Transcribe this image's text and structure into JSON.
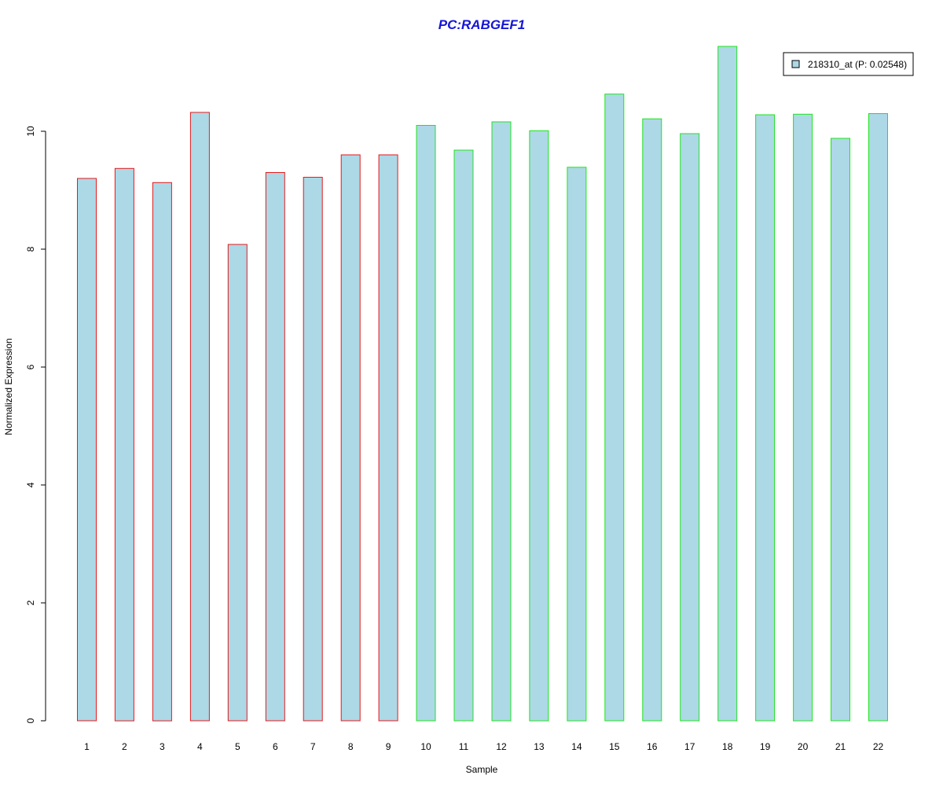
{
  "chart_data": {
    "type": "bar",
    "title": "PC:RABGEF1",
    "xlabel": "Sample",
    "ylabel": "Normalized Expression",
    "categories": [
      "1",
      "2",
      "3",
      "4",
      "5",
      "6",
      "7",
      "8",
      "9",
      "10",
      "11",
      "12",
      "13",
      "14",
      "15",
      "16",
      "17",
      "18",
      "19",
      "20",
      "21",
      "22"
    ],
    "series": [
      {
        "name": "218310_at (P: 0.02548)",
        "values": [
          9.2,
          9.37,
          9.13,
          10.32,
          8.08,
          9.3,
          9.22,
          9.6,
          9.6,
          10.1,
          9.68,
          10.16,
          10.01,
          9.39,
          10.63,
          10.21,
          9.96,
          11.44,
          10.28,
          10.29,
          9.88,
          10.3
        ]
      }
    ],
    "group_border_colors": [
      "#e31a1c",
      "#e31a1c",
      "#e31a1c",
      "#e31a1c",
      "#e31a1c",
      "#e31a1c",
      "#e31a1c",
      "#e31a1c",
      "#e31a1c",
      "#1ee41e",
      "#1ee41e",
      "#1ee41e",
      "#1ee41e",
      "#1ee41e",
      "#1ee41e",
      "#1ee41e",
      "#1ee41e",
      "#1ee41e",
      "#1ee41e",
      "#1ee41e",
      "#1ee41e",
      "#1ee41e"
    ],
    "bar_fill": "#add8e6",
    "title_color": "#1515d6",
    "yticks": [
      0,
      2,
      4,
      6,
      8,
      10
    ],
    "ylim": [
      0,
      11.44
    ],
    "grid": false,
    "legend_position": "top-right"
  }
}
